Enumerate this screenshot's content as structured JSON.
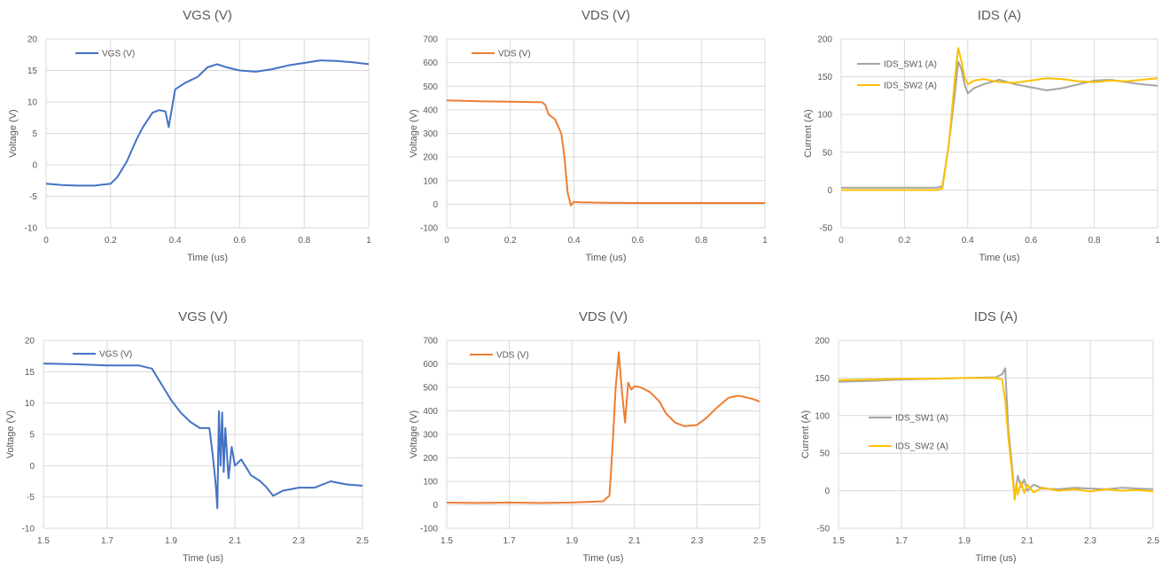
{
  "chart_data": [
    {
      "type": "line",
      "title": "VGS (V)",
      "xlabel": "Time (us)",
      "ylabel": "Voltage (V)",
      "xlim": [
        0,
        1
      ],
      "ylim": [
        -10,
        20
      ],
      "xticks": [
        0,
        0.2,
        0.4,
        0.6,
        0.8,
        1
      ],
      "xtick_labels": [
        "0",
        "0.2",
        "0.4",
        "0.6",
        "0.8",
        "1"
      ],
      "yticks": [
        -10,
        -5,
        0,
        5,
        10,
        15,
        20
      ],
      "grid": true,
      "legend": "top-left",
      "series": [
        {
          "name": "VGS (V)",
          "color": "#4472C4",
          "x": [
            0,
            0.05,
            0.1,
            0.15,
            0.2,
            0.22,
            0.25,
            0.28,
            0.3,
            0.33,
            0.35,
            0.37,
            0.38,
            0.39,
            0.4,
            0.43,
            0.47,
            0.5,
            0.53,
            0.56,
            0.6,
            0.65,
            0.7,
            0.75,
            0.8,
            0.85,
            0.9,
            0.95,
            1.0
          ],
          "y": [
            -3.0,
            -3.2,
            -3.3,
            -3.3,
            -3.0,
            -2.0,
            0.5,
            4.0,
            6.0,
            8.3,
            8.7,
            8.5,
            6.0,
            9.0,
            12.0,
            13.0,
            14.0,
            15.5,
            16.0,
            15.5,
            15.0,
            14.8,
            15.2,
            15.8,
            16.2,
            16.6,
            16.5,
            16.3,
            16.0
          ]
        }
      ]
    },
    {
      "type": "line",
      "title": "VDS (V)",
      "xlabel": "Time (us)",
      "ylabel": "Voltage (V)",
      "xlim": [
        0,
        1
      ],
      "ylim": [
        -100,
        700
      ],
      "xticks": [
        0,
        0.2,
        0.4,
        0.6,
        0.8,
        1
      ],
      "xtick_labels": [
        "0",
        "0.2",
        "0.4",
        "0.6",
        "0.8",
        "1"
      ],
      "yticks": [
        -100,
        0,
        100,
        200,
        300,
        400,
        500,
        600,
        700
      ],
      "grid": true,
      "legend": "top-left",
      "series": [
        {
          "name": "VDS (V)",
          "color": "#ED7D31",
          "x": [
            0,
            0.05,
            0.1,
            0.2,
            0.3,
            0.31,
            0.32,
            0.34,
            0.36,
            0.37,
            0.38,
            0.39,
            0.4,
            0.42,
            0.5,
            0.6,
            0.7,
            0.8,
            0.9,
            1.0
          ],
          "y": [
            440,
            438,
            436,
            434,
            432,
            420,
            380,
            360,
            300,
            200,
            50,
            -5,
            10,
            8,
            6,
            5,
            5,
            5,
            5,
            5
          ]
        }
      ]
    },
    {
      "type": "line",
      "title": "IDS (A)",
      "xlabel": "Time (us)",
      "ylabel": "Current (A)",
      "xlim": [
        0,
        1
      ],
      "ylim": [
        -50,
        200
      ],
      "xticks": [
        0,
        0.2,
        0.4,
        0.6,
        0.8,
        1
      ],
      "xtick_labels": [
        "0",
        "0.2",
        "0.4",
        "0.6",
        "0.8",
        "1"
      ],
      "yticks": [
        -50,
        0,
        50,
        100,
        150,
        200
      ],
      "grid": true,
      "legend": "top-left",
      "series": [
        {
          "name": "IDS_SW1 (A)",
          "color": "#A5A5A5",
          "x": [
            0,
            0.1,
            0.2,
            0.3,
            0.32,
            0.34,
            0.36,
            0.37,
            0.38,
            0.39,
            0.4,
            0.42,
            0.45,
            0.5,
            0.55,
            0.6,
            0.65,
            0.7,
            0.75,
            0.8,
            0.85,
            0.9,
            0.95,
            1.0
          ],
          "y": [
            3,
            3,
            3,
            3,
            5,
            60,
            130,
            170,
            160,
            140,
            128,
            135,
            140,
            146,
            140,
            136,
            132,
            135,
            140,
            145,
            146,
            143,
            140,
            138
          ]
        },
        {
          "name": "IDS_SW2 (A)",
          "color": "#FFC000",
          "x": [
            0,
            0.1,
            0.2,
            0.3,
            0.32,
            0.34,
            0.36,
            0.37,
            0.38,
            0.39,
            0.4,
            0.42,
            0.45,
            0.5,
            0.55,
            0.6,
            0.65,
            0.7,
            0.75,
            0.8,
            0.85,
            0.9,
            0.95,
            1.0
          ],
          "y": [
            0,
            0,
            0,
            0,
            2,
            60,
            150,
            188,
            170,
            150,
            140,
            145,
            147,
            143,
            142,
            145,
            148,
            147,
            144,
            143,
            145,
            144,
            146,
            148
          ]
        }
      ]
    },
    {
      "type": "line",
      "title": "VGS (V)",
      "xlabel": "Time (us)",
      "ylabel": "Voltage (V)",
      "xlim": [
        1.5,
        2.5
      ],
      "ylim": [
        -10,
        20
      ],
      "xticks": [
        1.5,
        1.7,
        1.9,
        2.1,
        2.3,
        2.5
      ],
      "xtick_labels": [
        "1.5",
        "1.7",
        "1.9",
        "2.1",
        "2.3",
        "2.5"
      ],
      "yticks": [
        -10,
        -5,
        0,
        5,
        10,
        15,
        20
      ],
      "grid": true,
      "legend": "top-left",
      "series": [
        {
          "name": "VGS (V)",
          "color": "#4472C4",
          "x": [
            1.5,
            1.6,
            1.7,
            1.8,
            1.84,
            1.87,
            1.9,
            1.93,
            1.96,
            1.99,
            2.02,
            2.03,
            2.04,
            2.045,
            2.05,
            2.055,
            2.06,
            2.065,
            2.07,
            2.08,
            2.09,
            2.1,
            2.12,
            2.15,
            2.18,
            2.2,
            2.22,
            2.25,
            2.3,
            2.35,
            2.4,
            2.45,
            2.5
          ],
          "y": [
            16.3,
            16.2,
            16.0,
            16.0,
            15.5,
            13.0,
            10.5,
            8.5,
            7.0,
            6.0,
            6.0,
            2.0,
            -3.0,
            -6.8,
            8.7,
            0.0,
            8.5,
            -1.0,
            6.0,
            -2.0,
            3.0,
            0.0,
            1.0,
            -1.5,
            -2.5,
            -3.5,
            -4.8,
            -4.0,
            -3.5,
            -3.5,
            -2.5,
            -3.0,
            -3.2
          ]
        }
      ]
    },
    {
      "type": "line",
      "title": "VDS (V)",
      "xlabel": "Time (us)",
      "ylabel": "Voltage (V)",
      "xlim": [
        1.5,
        2.5
      ],
      "ylim": [
        -100,
        700
      ],
      "xticks": [
        1.5,
        1.7,
        1.9,
        2.1,
        2.3,
        2.5
      ],
      "xtick_labels": [
        "1.5",
        "1.7",
        "1.9",
        "2.1",
        "2.3",
        "2.5"
      ],
      "yticks": [
        -100,
        0,
        100,
        200,
        300,
        400,
        500,
        600,
        700
      ],
      "grid": true,
      "legend": "top-left",
      "series": [
        {
          "name": "VDS (V)",
          "color": "#ED7D31",
          "x": [
            1.5,
            1.6,
            1.7,
            1.8,
            1.9,
            2.0,
            2.02,
            2.03,
            2.04,
            2.05,
            2.06,
            2.07,
            2.08,
            2.09,
            2.1,
            2.12,
            2.15,
            2.18,
            2.2,
            2.23,
            2.26,
            2.3,
            2.33,
            2.36,
            2.4,
            2.43,
            2.45,
            2.48,
            2.5
          ],
          "y": [
            10,
            8,
            10,
            8,
            10,
            15,
            40,
            250,
            500,
            650,
            480,
            350,
            520,
            490,
            505,
            500,
            480,
            440,
            390,
            350,
            335,
            340,
            370,
            410,
            455,
            465,
            460,
            450,
            440
          ]
        }
      ]
    },
    {
      "type": "line",
      "title": "IDS (A)",
      "xlabel": "Time (us)",
      "ylabel": "Current (A)",
      "xlim": [
        1.5,
        2.5
      ],
      "ylim": [
        -50,
        200
      ],
      "xticks": [
        1.5,
        1.7,
        1.9,
        2.1,
        2.3,
        2.5
      ],
      "xtick_labels": [
        "1.5",
        "1.7",
        "1.9",
        "2.1",
        "2.3",
        "2.5"
      ],
      "yticks": [
        -50,
        0,
        50,
        100,
        150,
        200
      ],
      "grid": true,
      "legend": "left",
      "series": [
        {
          "name": "IDS_SW1 (A)",
          "color": "#A5A5A5",
          "x": [
            1.5,
            1.6,
            1.7,
            1.8,
            1.9,
            2.0,
            2.02,
            2.03,
            2.04,
            2.05,
            2.06,
            2.07,
            2.08,
            2.09,
            2.1,
            2.12,
            2.15,
            2.2,
            2.25,
            2.3,
            2.35,
            2.4,
            2.45,
            2.5
          ],
          "y": [
            145,
            146,
            148,
            149,
            150,
            151,
            155,
            163,
            80,
            40,
            -10,
            20,
            5,
            15,
            0,
            8,
            3,
            2,
            4,
            3,
            2,
            4,
            3,
            2
          ]
        },
        {
          "name": "IDS_SW2 (A)",
          "color": "#FFC000",
          "x": [
            1.5,
            1.6,
            1.7,
            1.8,
            1.9,
            2.0,
            2.02,
            2.03,
            2.04,
            2.05,
            2.06,
            2.065,
            2.07,
            2.08,
            2.09,
            2.1,
            2.12,
            2.15,
            2.2,
            2.25,
            2.3,
            2.35,
            2.4,
            2.45,
            2.5
          ],
          "y": [
            147,
            148,
            149,
            149,
            150,
            150,
            148,
            120,
            70,
            30,
            -12,
            10,
            -5,
            12,
            -3,
            8,
            -2,
            4,
            0,
            2,
            -1,
            2,
            0,
            1,
            -1
          ]
        }
      ]
    }
  ]
}
